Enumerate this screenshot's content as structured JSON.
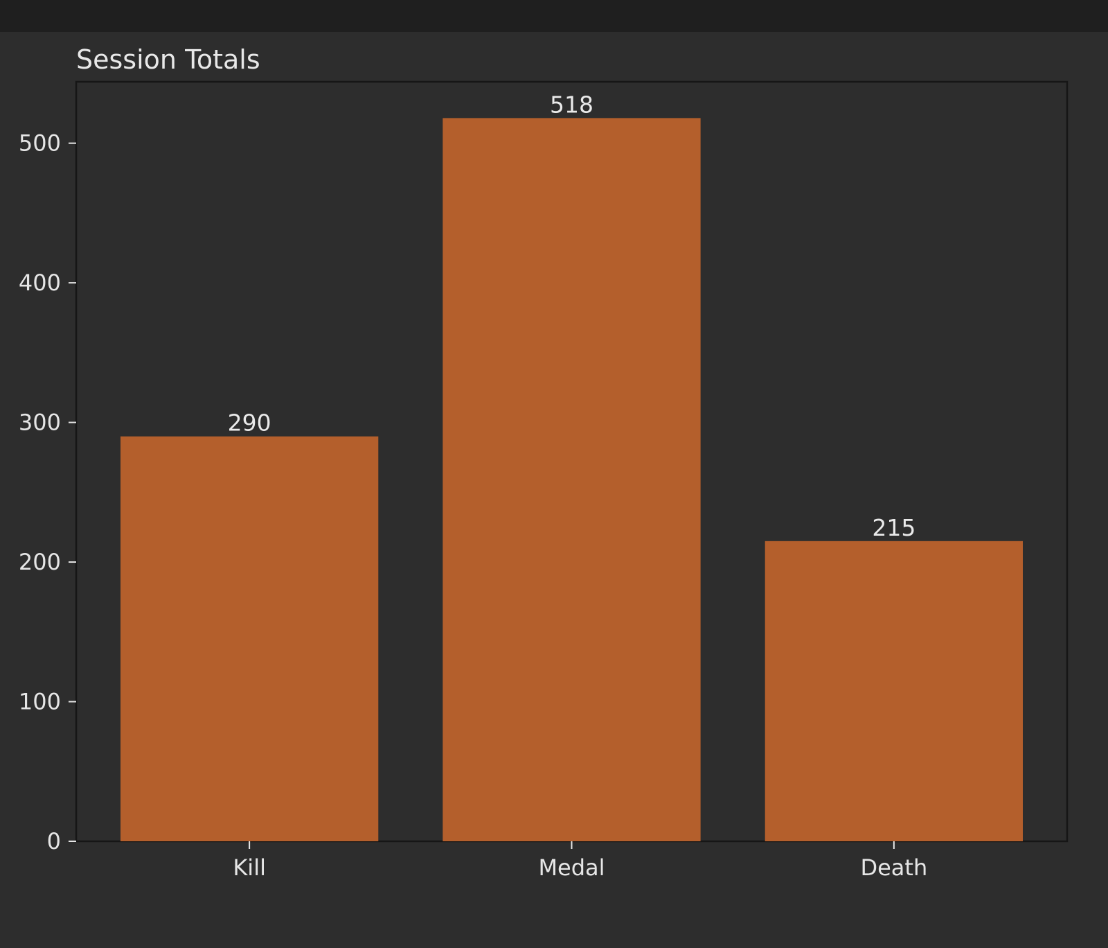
{
  "colors": {
    "background": "#2d2d2d",
    "topbar": "#1f1f1f",
    "bar": "#b45f2c",
    "axes_frame": "#161616",
    "text": "#e6e6e6"
  },
  "chart_data": {
    "type": "bar",
    "title": "Session Totals",
    "xlabel": "",
    "ylabel": "",
    "categories": [
      "Kill",
      "Medal",
      "Death"
    ],
    "values": [
      290,
      518,
      215
    ],
    "data_labels": [
      "290",
      "518",
      "215"
    ],
    "yticks": [
      0,
      100,
      200,
      300,
      400,
      500
    ],
    "ytick_labels": [
      "0",
      "100",
      "200",
      "300",
      "400",
      "500"
    ],
    "ylim": [
      0,
      544
    ],
    "grid": false,
    "legend": "none"
  }
}
